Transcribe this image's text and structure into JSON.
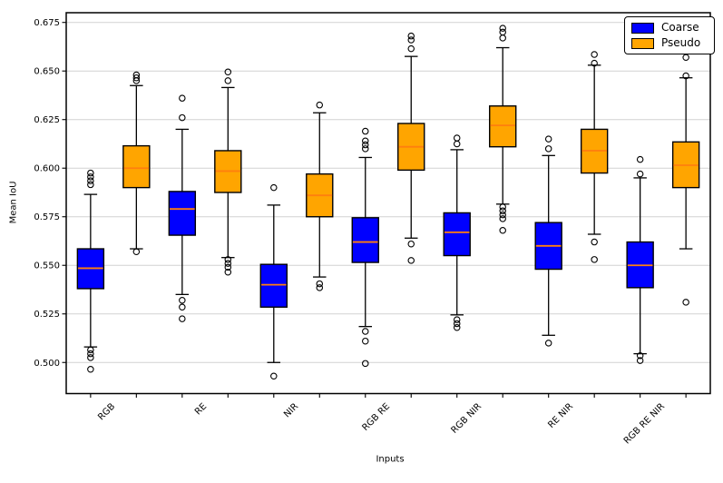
{
  "figure": {
    "background": "#ffffff",
    "grid_color": "#d2d2d2",
    "spine_color": "#000000",
    "legend": {
      "position": "top-right",
      "entries": [
        {
          "label": "Coarse",
          "color": "#0000ff"
        },
        {
          "label": "Pseudo",
          "color": "#ffa500"
        }
      ]
    }
  },
  "chart_data": {
    "type": "boxplot",
    "title": "",
    "xlabel": "Inputs",
    "ylabel": "Mean IoU",
    "categories": [
      "RGB",
      "RE",
      "NIR",
      "RGB RE",
      "RGB NIR",
      "RE NIR",
      "RGB RE NIR"
    ],
    "yticks": [
      0.5,
      0.525,
      0.55,
      0.575,
      0.6,
      0.625,
      0.65,
      0.675
    ],
    "ytick_labels": [
      "0.500",
      "0.525",
      "0.550",
      "0.575",
      "0.600",
      "0.625",
      "0.650",
      "0.675"
    ],
    "ylim": [
      0.484,
      0.68
    ],
    "grid": "horizontal",
    "legend_position": "upper right",
    "median_color": "#ff7f0e",
    "box_edge_color": "#000000",
    "series": [
      {
        "name": "Coarse",
        "color": "#0000ff",
        "boxes": [
          {
            "category": "RGB",
            "whislo": 0.508,
            "q1": 0.538,
            "med": 0.5485,
            "q3": 0.5585,
            "whishi": 0.5865,
            "fliers": [
              0.5975,
              0.5955,
              0.5935,
              0.5915,
              0.5065,
              0.5045,
              0.5025,
              0.4965
            ]
          },
          {
            "category": "RE",
            "whislo": 0.535,
            "q1": 0.5655,
            "med": 0.579,
            "q3": 0.588,
            "whishi": 0.62,
            "fliers": [
              0.636,
              0.626,
              0.532,
              0.5285,
              0.5225
            ]
          },
          {
            "category": "NIR",
            "whislo": 0.5,
            "q1": 0.5285,
            "med": 0.54,
            "q3": 0.5505,
            "whishi": 0.581,
            "fliers": [
              0.59,
              0.493
            ]
          },
          {
            "category": "RGB RE",
            "whislo": 0.5185,
            "q1": 0.5515,
            "med": 0.562,
            "q3": 0.5745,
            "whishi": 0.6055,
            "fliers": [
              0.619,
              0.614,
              0.612,
              0.61,
              0.516,
              0.511,
              0.4995
            ]
          },
          {
            "category": "RGB NIR",
            "whislo": 0.5245,
            "q1": 0.555,
            "med": 0.567,
            "q3": 0.577,
            "whishi": 0.6095,
            "fliers": [
              0.6155,
              0.6125,
              0.522,
              0.52,
              0.518
            ]
          },
          {
            "category": "RE NIR",
            "whislo": 0.514,
            "q1": 0.548,
            "med": 0.56,
            "q3": 0.572,
            "whishi": 0.6065,
            "fliers": [
              0.615,
              0.61,
              0.51
            ]
          },
          {
            "category": "RGB RE NIR",
            "whislo": 0.5045,
            "q1": 0.5385,
            "med": 0.55,
            "q3": 0.562,
            "whishi": 0.595,
            "fliers": [
              0.6045,
              0.597,
              0.5035,
              0.501
            ]
          }
        ]
      },
      {
        "name": "Pseudo",
        "color": "#ffa500",
        "boxes": [
          {
            "category": "RGB",
            "whislo": 0.5585,
            "q1": 0.59,
            "med": 0.6,
            "q3": 0.6115,
            "whishi": 0.6425,
            "fliers": [
              0.648,
              0.6465,
              0.645,
              0.557
            ]
          },
          {
            "category": "RE",
            "whislo": 0.554,
            "q1": 0.5875,
            "med": 0.5985,
            "q3": 0.609,
            "whishi": 0.6415,
            "fliers": [
              0.6495,
              0.645,
              0.553,
              0.551,
              0.549,
              0.5465
            ]
          },
          {
            "category": "NIR",
            "whislo": 0.544,
            "q1": 0.575,
            "med": 0.586,
            "q3": 0.597,
            "whishi": 0.6285,
            "fliers": [
              0.6325,
              0.5405,
              0.5385
            ]
          },
          {
            "category": "RGB RE",
            "whislo": 0.564,
            "q1": 0.599,
            "med": 0.611,
            "q3": 0.623,
            "whishi": 0.6575,
            "fliers": [
              0.668,
              0.666,
              0.6615,
              0.561,
              0.5525
            ]
          },
          {
            "category": "RGB NIR",
            "whislo": 0.5815,
            "q1": 0.611,
            "med": 0.622,
            "q3": 0.632,
            "whishi": 0.662,
            "fliers": [
              0.672,
              0.67,
              0.667,
              0.58,
              0.578,
              0.576,
              0.574,
              0.568
            ]
          },
          {
            "category": "RE NIR",
            "whislo": 0.566,
            "q1": 0.5975,
            "med": 0.609,
            "q3": 0.62,
            "whishi": 0.653,
            "fliers": [
              0.6585,
              0.654,
              0.562,
              0.553
            ]
          },
          {
            "category": "RGB RE NIR",
            "whislo": 0.5585,
            "q1": 0.59,
            "med": 0.6015,
            "q3": 0.6135,
            "whishi": 0.6465,
            "fliers": [
              0.657,
              0.6475,
              0.531
            ]
          }
        ]
      }
    ]
  }
}
